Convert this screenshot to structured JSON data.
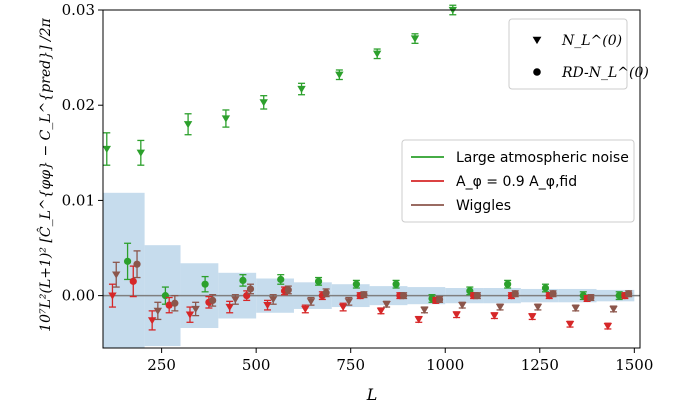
{
  "chart_data": {
    "type": "scatter",
    "xlabel": "L",
    "ylabel": "10⁷L²(L+1)² [Ĉ_L^{φφ} − C_L^{pred}] /2π",
    "xlim": [
      95,
      1515
    ],
    "ylim": [
      -0.0055,
      0.03
    ],
    "xticks": [
      250,
      500,
      750,
      1000,
      1250,
      1500
    ],
    "xtick_labels": [
      "250",
      "500",
      "750",
      "1000",
      "1250",
      "1500"
    ],
    "yticks": [
      0.0,
      0.01,
      0.02,
      0.03
    ],
    "ytick_labels": [
      "0.00",
      "0.01",
      "0.02",
      "0.03"
    ],
    "grid": false,
    "marker_legend": {
      "placement": "top-right",
      "entries": [
        {
          "marker": "triangle-down",
          "label": "N_L^(0)"
        },
        {
          "marker": "circle",
          "label": "RD-N_L^(0)"
        }
      ]
    },
    "color_legend": {
      "placement": "center-right",
      "entries": [
        {
          "label": "Large atmospheric noise",
          "color": "#2ca02c"
        },
        {
          "label": "A_φ = 0.9 A_φ,fid",
          "color": "#d62728"
        },
        {
          "label": "Wiggles",
          "color": "#8c564b"
        }
      ]
    },
    "band": {
      "color": "#bcd6ea",
      "bins": [
        {
          "x0": 95,
          "x1": 205,
          "half": 0.0108
        },
        {
          "x0": 205,
          "x1": 300,
          "half": 0.0053
        },
        {
          "x0": 300,
          "x1": 400,
          "half": 0.0034
        },
        {
          "x0": 400,
          "x1": 500,
          "half": 0.0024
        },
        {
          "x0": 500,
          "x1": 600,
          "half": 0.0018
        },
        {
          "x0": 600,
          "x1": 700,
          "half": 0.0014
        },
        {
          "x0": 700,
          "x1": 800,
          "half": 0.0012
        },
        {
          "x0": 800,
          "x1": 900,
          "half": 0.001
        },
        {
          "x0": 900,
          "x1": 1000,
          "half": 0.0009
        },
        {
          "x0": 1000,
          "x1": 1100,
          "half": 0.0008
        },
        {
          "x0": 1100,
          "x1": 1200,
          "half": 0.0008
        },
        {
          "x0": 1200,
          "x1": 1300,
          "half": 0.0007
        },
        {
          "x0": 1300,
          "x1": 1400,
          "half": 0.0007
        },
        {
          "x0": 1400,
          "x1": 1500,
          "half": 0.0006
        }
      ]
    },
    "series": [
      {
        "name": "Large atmospheric noise",
        "marker": "triangle-down",
        "color": "#2ca02c",
        "points": [
          {
            "x": 105,
            "y": 0.0154,
            "err": 0.0017
          },
          {
            "x": 195,
            "y": 0.015,
            "err": 0.0013
          },
          {
            "x": 320,
            "y": 0.018,
            "err": 0.0011
          },
          {
            "x": 420,
            "y": 0.0186,
            "err": 0.0009
          },
          {
            "x": 520,
            "y": 0.0203,
            "err": 0.0007
          },
          {
            "x": 620,
            "y": 0.0217,
            "err": 0.0006
          },
          {
            "x": 720,
            "y": 0.0232,
            "err": 0.0005
          },
          {
            "x": 820,
            "y": 0.0254,
            "err": 0.0005
          },
          {
            "x": 920,
            "y": 0.027,
            "err": 0.0005
          },
          {
            "x": 1020,
            "y": 0.03,
            "err": 0.0005
          }
        ]
      },
      {
        "name": "Large atmospheric noise",
        "marker": "circle",
        "color": "#2ca02c",
        "points": [
          {
            "x": 160,
            "y": 0.0036,
            "err": 0.0019
          },
          {
            "x": 260,
            "y": 0.0,
            "err": 0.0009
          },
          {
            "x": 365,
            "y": 0.0012,
            "err": 0.0008
          },
          {
            "x": 465,
            "y": 0.0016,
            "err": 0.0006
          },
          {
            "x": 565,
            "y": 0.0017,
            "err": 0.0005
          },
          {
            "x": 665,
            "y": 0.0015,
            "err": 0.0004
          },
          {
            "x": 765,
            "y": 0.0012,
            "err": 0.0004
          },
          {
            "x": 870,
            "y": 0.0012,
            "err": 0.0004
          },
          {
            "x": 965,
            "y": -0.0003,
            "err": 0.0004
          },
          {
            "x": 1065,
            "y": 0.0005,
            "err": 0.0004
          },
          {
            "x": 1165,
            "y": 0.0012,
            "err": 0.0004
          },
          {
            "x": 1265,
            "y": 0.0008,
            "err": 0.0004
          },
          {
            "x": 1365,
            "y": 0.0,
            "err": 0.0004
          },
          {
            "x": 1460,
            "y": 0.0,
            "err": 0.0004
          }
        ]
      },
      {
        "name": "A_φ = 0.9 A_φ,fid",
        "marker": "triangle-down",
        "color": "#d62728",
        "points": [
          {
            "x": 120,
            "y": 0.0,
            "err": 0.0012
          },
          {
            "x": 225,
            "y": -0.0026,
            "err": 0.001
          },
          {
            "x": 325,
            "y": -0.002,
            "err": 0.0008
          },
          {
            "x": 430,
            "y": -0.0012,
            "err": 0.0006
          },
          {
            "x": 530,
            "y": -0.001,
            "err": 0.0005
          },
          {
            "x": 630,
            "y": -0.0014,
            "err": 0.0004
          },
          {
            "x": 730,
            "y": -0.0012,
            "err": 0.0004
          },
          {
            "x": 830,
            "y": -0.0016,
            "err": 0.0003
          },
          {
            "x": 930,
            "y": -0.0025,
            "err": 0.0003
          },
          {
            "x": 1030,
            "y": -0.002,
            "err": 0.0003
          },
          {
            "x": 1130,
            "y": -0.0021,
            "err": 0.0003
          },
          {
            "x": 1230,
            "y": -0.0022,
            "err": 0.0003
          },
          {
            "x": 1330,
            "y": -0.003,
            "err": 0.0003
          },
          {
            "x": 1430,
            "y": -0.0032,
            "err": 0.0003
          }
        ]
      },
      {
        "name": "A_φ = 0.9 A_φ,fid",
        "marker": "circle",
        "color": "#d62728",
        "points": [
          {
            "x": 175,
            "y": 0.0015,
            "err": 0.0016
          },
          {
            "x": 270,
            "y": -0.001,
            "err": 0.0008
          },
          {
            "x": 375,
            "y": -0.0007,
            "err": 0.0006
          },
          {
            "x": 475,
            "y": 0.0,
            "err": 0.0005
          },
          {
            "x": 575,
            "y": 0.0005,
            "err": 0.0004
          },
          {
            "x": 675,
            "y": 0.0,
            "err": 0.0004
          },
          {
            "x": 775,
            "y": 0.0,
            "err": 0.0003
          },
          {
            "x": 880,
            "y": 0.0,
            "err": 0.0003
          },
          {
            "x": 975,
            "y": -0.0005,
            "err": 0.0003
          },
          {
            "x": 1075,
            "y": 0.0,
            "err": 0.0003
          },
          {
            "x": 1175,
            "y": 0.0,
            "err": 0.0003
          },
          {
            "x": 1275,
            "y": 0.0,
            "err": 0.0003
          },
          {
            "x": 1375,
            "y": -0.0003,
            "err": 0.0003
          },
          {
            "x": 1475,
            "y": 0.0,
            "err": 0.0003
          }
        ]
      },
      {
        "name": "Wiggles",
        "marker": "triangle-down",
        "color": "#8c564b",
        "points": [
          {
            "x": 130,
            "y": 0.0022,
            "err": 0.0013
          },
          {
            "x": 240,
            "y": -0.0016,
            "err": 0.0009
          },
          {
            "x": 340,
            "y": -0.0014,
            "err": 0.0007
          },
          {
            "x": 445,
            "y": -0.0004,
            "err": 0.0005
          },
          {
            "x": 545,
            "y": -0.0004,
            "err": 0.0005
          },
          {
            "x": 645,
            "y": -0.0006,
            "err": 0.0004
          },
          {
            "x": 745,
            "y": -0.0006,
            "err": 0.0004
          },
          {
            "x": 845,
            "y": -0.0009,
            "err": 0.0003
          },
          {
            "x": 945,
            "y": -0.0015,
            "err": 0.0003
          },
          {
            "x": 1045,
            "y": -0.001,
            "err": 0.0003
          },
          {
            "x": 1145,
            "y": -0.0012,
            "err": 0.0003
          },
          {
            "x": 1245,
            "y": -0.0012,
            "err": 0.0003
          },
          {
            "x": 1345,
            "y": -0.0013,
            "err": 0.0003
          },
          {
            "x": 1445,
            "y": -0.0014,
            "err": 0.0003
          }
        ]
      },
      {
        "name": "Wiggles",
        "marker": "circle",
        "color": "#8c564b",
        "points": [
          {
            "x": 185,
            "y": 0.0033,
            "err": 0.0014
          },
          {
            "x": 285,
            "y": -0.0008,
            "err": 0.0008
          },
          {
            "x": 385,
            "y": -0.0005,
            "err": 0.0006
          },
          {
            "x": 485,
            "y": 0.0007,
            "err": 0.0005
          },
          {
            "x": 585,
            "y": 0.0006,
            "err": 0.0004
          },
          {
            "x": 685,
            "y": 0.0003,
            "err": 0.0004
          },
          {
            "x": 785,
            "y": 0.0001,
            "err": 0.0003
          },
          {
            "x": 890,
            "y": 0.0,
            "err": 0.0003
          },
          {
            "x": 985,
            "y": -0.0004,
            "err": 0.0003
          },
          {
            "x": 1085,
            "y": 0.0,
            "err": 0.0003
          },
          {
            "x": 1185,
            "y": 0.0002,
            "err": 0.0003
          },
          {
            "x": 1285,
            "y": 0.0002,
            "err": 0.0003
          },
          {
            "x": 1385,
            "y": -0.0002,
            "err": 0.0003
          },
          {
            "x": 1485,
            "y": 0.0002,
            "err": 0.0003
          }
        ]
      }
    ]
  }
}
